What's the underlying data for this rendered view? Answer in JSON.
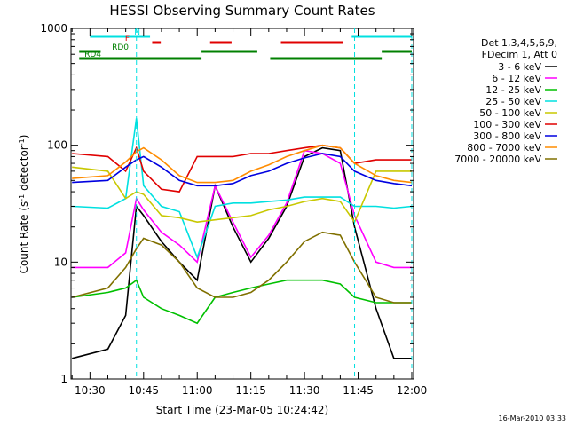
{
  "title": "HESSI Observing Summary Count Rates",
  "xlabel": "Start Time (23-Mar-05 10:24:42)",
  "ylabel_main": "Count Rate (s",
  "ylabel_sup1": "-1",
  "ylabel_mid": " detector",
  "ylabel_sup2": "-1",
  "ylabel_end": ")",
  "timestamp": "16-Mar-2010 03:33",
  "legend_header": [
    "Det 1,3,4,5,6,9,",
    "FDecim 1, Att 0"
  ],
  "state_bars": [
    {
      "label": "N",
      "color": "#00e0e0",
      "segments": [
        [
          10.5,
          10.78
        ],
        [
          11.72,
          12.0
        ]
      ]
    },
    {
      "label": "F",
      "color": "#e00000",
      "segments": [
        [
          10.79,
          10.83
        ],
        [
          11.06,
          11.16
        ],
        [
          11.39,
          11.68
        ]
      ]
    },
    {
      "label": "RD0",
      "color": "#008000",
      "segments": [
        [
          10.45,
          10.55
        ],
        [
          11.02,
          11.28
        ],
        [
          11.86,
          12.0
        ]
      ]
    },
    {
      "label": "RD4",
      "color": "#008000",
      "segments": [
        [
          10.45,
          11.02
        ],
        [
          11.34,
          11.86
        ]
      ]
    }
  ],
  "chart_data": {
    "type": "line",
    "title": "HESSI Observing Summary Count Rates",
    "xlabel": "Start Time (23-Mar-05 10:24:42)",
    "ylabel": "Count Rate (s-1 detector-1)",
    "y_scale": "log",
    "ylim": [
      1,
      1000
    ],
    "xlim": [
      "10:24:42",
      "12:00:30"
    ],
    "x_ticks": [
      "10:30",
      "10:45",
      "11:00",
      "11:15",
      "11:30",
      "11:45",
      "12:00"
    ],
    "y_ticks": [
      "1",
      "10",
      "100",
      "1000"
    ],
    "vertical_markers": [
      "10:43",
      "11:44",
      "12:00"
    ],
    "x": [
      "10:25",
      "10:35",
      "10:40",
      "10:43",
      "10:45",
      "10:50",
      "10:55",
      "11:00",
      "11:05",
      "11:10",
      "11:15",
      "11:20",
      "11:25",
      "11:30",
      "11:35",
      "11:40",
      "11:44",
      "11:50",
      "11:55",
      "12:00"
    ],
    "series": [
      {
        "name": "3 - 6 keV",
        "color": "#000000",
        "values": [
          1.5,
          1.8,
          3.5,
          30,
          25,
          15,
          10,
          7,
          45,
          20,
          10,
          16,
          30,
          80,
          95,
          90,
          20,
          4,
          1.5,
          1.5
        ]
      },
      {
        "name": "6 - 12 keV",
        "color": "#ff00ff",
        "values": [
          9,
          9,
          12,
          35,
          28,
          18,
          14,
          10,
          45,
          22,
          11,
          17,
          32,
          90,
          85,
          70,
          25,
          10,
          9,
          9
        ]
      },
      {
        "name": "12 - 25 keV",
        "color": "#00c000",
        "values": [
          5,
          5.5,
          6,
          7,
          5,
          4,
          3.5,
          3,
          5,
          5.5,
          6,
          6.5,
          7,
          7,
          7,
          6.5,
          5,
          4.5,
          4.5,
          4.5
        ]
      },
      {
        "name": "25 - 50 keV",
        "color": "#00e0e0",
        "values": [
          30,
          29,
          35,
          170,
          45,
          30,
          27,
          11,
          30,
          32,
          32,
          33,
          34,
          36,
          36,
          36,
          30,
          30,
          29,
          30
        ]
      },
      {
        "name": "50 - 100 keV",
        "color": "#c8c800",
        "values": [
          65,
          60,
          35,
          40,
          38,
          25,
          24,
          22,
          23,
          24,
          25,
          28,
          30,
          33,
          35,
          33,
          22,
          60,
          60,
          60
        ]
      },
      {
        "name": "100 - 300 keV",
        "color": "#e00000",
        "values": [
          85,
          80,
          60,
          95,
          60,
          42,
          40,
          80,
          80,
          80,
          85,
          85,
          90,
          95,
          100,
          95,
          70,
          75,
          75,
          75
        ]
      },
      {
        "name": "300 - 800 keV",
        "color": "#0000e0",
        "values": [
          48,
          50,
          65,
          75,
          80,
          65,
          50,
          45,
          45,
          47,
          55,
          60,
          70,
          78,
          85,
          80,
          60,
          50,
          47,
          45
        ]
      },
      {
        "name": "800 - 7000 keV",
        "color": "#ff8c00",
        "values": [
          52,
          55,
          72,
          88,
          95,
          75,
          55,
          48,
          48,
          50,
          60,
          68,
          80,
          90,
          100,
          95,
          70,
          55,
          50,
          48
        ]
      },
      {
        "name": "7000 - 20000 keV",
        "color": "#807000",
        "values": [
          5,
          6,
          9,
          13,
          16,
          14,
          10,
          6,
          5,
          5,
          5.5,
          7,
          10,
          15,
          18,
          17,
          10,
          5,
          4.5,
          4.5
        ]
      }
    ]
  }
}
